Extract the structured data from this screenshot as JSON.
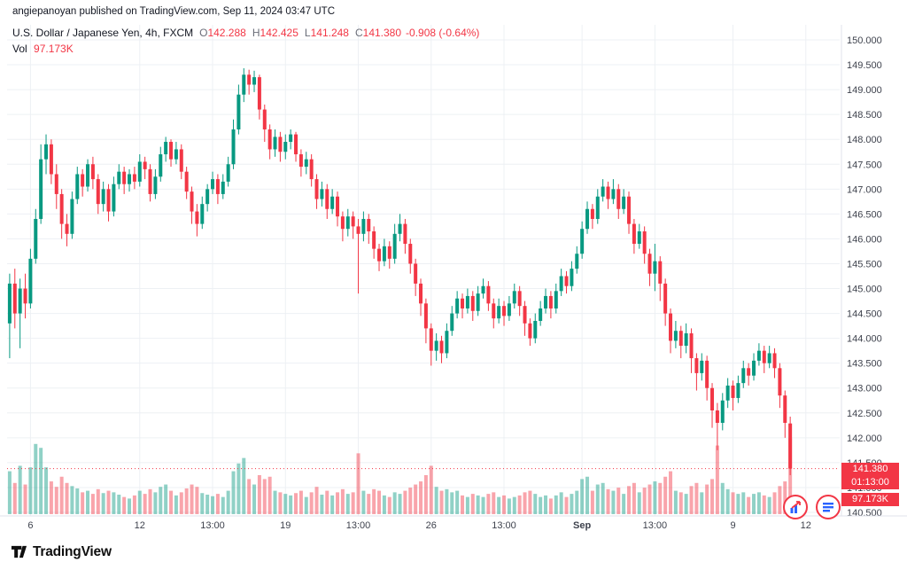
{
  "attribution": "angiepanoyan published on TradingView.com, Sep 11, 2024 03:47 UTC",
  "legend": {
    "symbol_title": "U.S. Dollar / Japanese Yen, 4h, FXCM",
    "ohlc": {
      "o_label": "O",
      "o": "142.288",
      "h_label": "H",
      "h": "142.425",
      "l_label": "L",
      "l": "141.248",
      "c_label": "C",
      "c": "141.380",
      "change": "-0.908 (-0.64%)"
    },
    "vol_label": "Vol",
    "vol_value": "97.173K"
  },
  "price_axis": {
    "labels": [
      "150.000",
      "149.500",
      "149.000",
      "148.500",
      "148.000",
      "147.500",
      "147.000",
      "146.500",
      "146.000",
      "145.500",
      "145.000",
      "144.500",
      "144.000",
      "143.500",
      "143.000",
      "142.500",
      "142.000",
      "141.500",
      "141.000",
      "140.500"
    ]
  },
  "time_axis": {
    "ticks": [
      {
        "label": "6",
        "index": 4
      },
      {
        "label": "12",
        "index": 25
      },
      {
        "label": "13:00",
        "index": 39
      },
      {
        "label": "19",
        "index": 53
      },
      {
        "label": "13:00",
        "index": 67
      },
      {
        "label": "26",
        "index": 81
      },
      {
        "label": "13:00",
        "index": 95
      },
      {
        "label": "Sep",
        "index": 110,
        "bold": true
      },
      {
        "label": "13:00",
        "index": 124
      },
      {
        "label": "9",
        "index": 139
      },
      {
        "label": "12",
        "index": 153
      }
    ]
  },
  "last_price": {
    "price": 141.38,
    "price_label": "141.380",
    "countdown": "01:13:00",
    "volume_label": "97.173K"
  },
  "colors": {
    "up": "#089981",
    "down": "#f23645",
    "vol_up": "rgba(8,153,129,0.45)",
    "vol_down": "rgba(242,54,69,0.45)",
    "grid": "#edf0f4",
    "axis_border": "#e0e3eb",
    "axis_text": "#3e424d",
    "badge_bg": "#f23645",
    "accent_blue": "#2962ff"
  },
  "footer": {
    "brand": "TradingView"
  },
  "chart_data": {
    "type": "candlestick",
    "title": "U.S. Dollar / Japanese Yen, 4h, FXCM",
    "interval": "4h",
    "exchange": "FXCM",
    "xlabel": "",
    "ylabel": "",
    "ylim": [
      140.5,
      150.0
    ],
    "grid": true,
    "columns": [
      "open",
      "high",
      "low",
      "close",
      "volume_k"
    ],
    "last_bar": {
      "open": 142.288,
      "high": 142.425,
      "low": 141.248,
      "close": 141.38,
      "change": -0.908,
      "change_pct": -0.64,
      "volume": "97.173K"
    },
    "candles": [
      [
        144.3,
        145.3,
        143.6,
        145.1,
        55
      ],
      [
        145.1,
        145.4,
        144.2,
        144.5,
        40
      ],
      [
        144.5,
        145.2,
        143.8,
        145.0,
        62
      ],
      [
        145.0,
        145.3,
        144.4,
        144.7,
        38
      ],
      [
        144.7,
        145.8,
        144.6,
        145.6,
        60
      ],
      [
        145.6,
        146.6,
        145.5,
        146.4,
        90
      ],
      [
        146.4,
        147.9,
        146.3,
        147.6,
        85
      ],
      [
        147.6,
        148.1,
        147.3,
        147.9,
        60
      ],
      [
        147.9,
        148.0,
        147.1,
        147.3,
        42
      ],
      [
        147.3,
        147.5,
        146.6,
        146.9,
        35
      ],
      [
        146.9,
        147.0,
        146.0,
        146.3,
        48
      ],
      [
        146.3,
        146.5,
        145.85,
        146.1,
        40
      ],
      [
        146.1,
        146.95,
        146.0,
        146.8,
        36
      ],
      [
        146.8,
        147.45,
        146.7,
        147.3,
        33
      ],
      [
        147.3,
        147.4,
        146.85,
        147.05,
        28
      ],
      [
        147.05,
        147.6,
        146.95,
        147.5,
        30
      ],
      [
        147.5,
        147.65,
        147.0,
        147.2,
        26
      ],
      [
        147.2,
        147.3,
        146.5,
        146.7,
        32
      ],
      [
        146.7,
        147.15,
        146.55,
        147.0,
        27
      ],
      [
        147.0,
        147.1,
        146.35,
        146.55,
        30
      ],
      [
        146.55,
        147.25,
        146.45,
        147.1,
        28
      ],
      [
        147.1,
        147.5,
        147.0,
        147.35,
        25
      ],
      [
        147.35,
        147.45,
        146.9,
        147.1,
        22
      ],
      [
        147.1,
        147.4,
        146.95,
        147.3,
        20
      ],
      [
        147.3,
        147.45,
        147.0,
        147.15,
        24
      ],
      [
        147.15,
        147.7,
        147.05,
        147.55,
        30
      ],
      [
        147.55,
        147.65,
        147.2,
        147.4,
        26
      ],
      [
        147.4,
        147.5,
        146.75,
        146.9,
        32
      ],
      [
        146.9,
        147.4,
        146.8,
        147.25,
        28
      ],
      [
        147.25,
        147.85,
        147.15,
        147.7,
        35
      ],
      [
        147.7,
        148.05,
        147.55,
        147.95,
        38
      ],
      [
        147.95,
        148.0,
        147.45,
        147.6,
        30
      ],
      [
        147.6,
        147.95,
        147.5,
        147.8,
        24
      ],
      [
        147.8,
        147.9,
        147.2,
        147.35,
        28
      ],
      [
        147.35,
        147.45,
        146.8,
        146.95,
        33
      ],
      [
        146.95,
        147.05,
        146.3,
        146.55,
        38
      ],
      [
        146.55,
        146.7,
        146.05,
        146.3,
        35
      ],
      [
        146.3,
        146.85,
        146.2,
        146.7,
        27
      ],
      [
        146.7,
        147.1,
        146.55,
        147.0,
        25
      ],
      [
        147.0,
        147.35,
        146.9,
        147.2,
        23
      ],
      [
        147.2,
        147.3,
        146.7,
        146.9,
        26
      ],
      [
        146.9,
        147.3,
        146.8,
        147.15,
        22
      ],
      [
        147.15,
        147.65,
        147.05,
        147.5,
        30
      ],
      [
        147.5,
        148.4,
        147.4,
        148.2,
        55
      ],
      [
        148.2,
        149.1,
        148.1,
        148.9,
        65
      ],
      [
        148.9,
        149.43,
        148.75,
        149.3,
        72
      ],
      [
        149.3,
        149.4,
        148.9,
        149.1,
        45
      ],
      [
        149.1,
        149.38,
        148.95,
        149.25,
        38
      ],
      [
        149.25,
        149.3,
        148.4,
        148.6,
        50
      ],
      [
        148.6,
        148.7,
        147.95,
        148.2,
        45
      ],
      [
        148.2,
        148.3,
        147.6,
        147.8,
        48
      ],
      [
        147.8,
        148.2,
        147.65,
        148.05,
        30
      ],
      [
        148.05,
        148.15,
        147.55,
        147.75,
        28
      ],
      [
        147.75,
        148.1,
        147.6,
        147.95,
        26
      ],
      [
        147.95,
        148.2,
        147.8,
        148.1,
        24
      ],
      [
        148.1,
        148.15,
        147.55,
        147.7,
        27
      ],
      [
        147.7,
        147.8,
        147.25,
        147.45,
        30
      ],
      [
        147.45,
        147.75,
        147.3,
        147.6,
        22
      ],
      [
        147.6,
        147.7,
        147.05,
        147.2,
        28
      ],
      [
        147.2,
        147.3,
        146.6,
        146.8,
        35
      ],
      [
        146.8,
        147.15,
        146.65,
        147.0,
        25
      ],
      [
        147.0,
        147.1,
        146.4,
        146.6,
        30
      ],
      [
        146.6,
        147.0,
        146.5,
        146.85,
        24
      ],
      [
        146.85,
        146.95,
        146.25,
        146.45,
        28
      ],
      [
        146.45,
        146.55,
        145.95,
        146.2,
        32
      ],
      [
        146.2,
        146.6,
        146.05,
        146.45,
        26
      ],
      [
        146.45,
        146.55,
        146.0,
        146.25,
        28
      ],
      [
        146.25,
        146.4,
        144.9,
        146.1,
        78
      ],
      [
        146.1,
        146.55,
        145.95,
        146.4,
        30
      ],
      [
        146.4,
        146.5,
        145.9,
        146.15,
        26
      ],
      [
        146.15,
        146.25,
        145.6,
        145.8,
        32
      ],
      [
        145.8,
        145.9,
        145.35,
        145.55,
        30
      ],
      [
        145.55,
        146.0,
        145.45,
        145.85,
        24
      ],
      [
        145.85,
        145.95,
        145.4,
        145.6,
        22
      ],
      [
        145.6,
        146.3,
        145.5,
        146.1,
        28
      ],
      [
        146.1,
        146.5,
        145.95,
        146.3,
        26
      ],
      [
        146.3,
        146.4,
        145.7,
        145.9,
        30
      ],
      [
        145.9,
        146.0,
        145.3,
        145.5,
        34
      ],
      [
        145.5,
        145.6,
        144.85,
        145.1,
        38
      ],
      [
        145.1,
        145.2,
        144.45,
        144.7,
        42
      ],
      [
        144.7,
        144.8,
        143.9,
        144.2,
        50
      ],
      [
        144.2,
        144.3,
        143.45,
        143.75,
        62
      ],
      [
        143.75,
        144.1,
        143.55,
        143.95,
        35
      ],
      [
        143.95,
        144.05,
        143.5,
        143.7,
        30
      ],
      [
        143.7,
        144.3,
        143.6,
        144.15,
        32
      ],
      [
        144.15,
        144.65,
        144.05,
        144.5,
        28
      ],
      [
        144.5,
        144.95,
        144.4,
        144.8,
        30
      ],
      [
        144.8,
        144.9,
        144.4,
        144.6,
        24
      ],
      [
        144.6,
        145.0,
        144.5,
        144.85,
        22
      ],
      [
        144.85,
        144.95,
        144.35,
        144.55,
        26
      ],
      [
        144.55,
        145.05,
        144.45,
        144.9,
        24
      ],
      [
        144.9,
        145.2,
        144.8,
        145.05,
        22
      ],
      [
        145.05,
        145.15,
        144.55,
        144.7,
        26
      ],
      [
        144.7,
        144.8,
        144.2,
        144.4,
        28
      ],
      [
        144.4,
        144.8,
        144.3,
        144.65,
        22
      ],
      [
        144.65,
        144.75,
        144.25,
        144.45,
        24
      ],
      [
        144.45,
        144.85,
        144.35,
        144.7,
        20
      ],
      [
        144.7,
        145.1,
        144.6,
        144.95,
        22
      ],
      [
        144.95,
        145.05,
        144.45,
        144.65,
        24
      ],
      [
        144.65,
        144.75,
        144.05,
        144.3,
        28
      ],
      [
        144.3,
        144.4,
        143.85,
        144.0,
        30
      ],
      [
        144.0,
        144.5,
        143.9,
        144.35,
        26
      ],
      [
        144.35,
        144.75,
        144.25,
        144.6,
        22
      ],
      [
        144.6,
        145.0,
        144.5,
        144.85,
        24
      ],
      [
        144.85,
        144.95,
        144.4,
        144.6,
        20
      ],
      [
        144.6,
        145.1,
        144.5,
        144.95,
        24
      ],
      [
        144.95,
        145.4,
        144.85,
        145.25,
        28
      ],
      [
        145.25,
        145.35,
        144.9,
        145.05,
        22
      ],
      [
        145.05,
        145.55,
        144.95,
        145.4,
        26
      ],
      [
        145.4,
        145.85,
        145.3,
        145.7,
        30
      ],
      [
        145.7,
        146.35,
        145.6,
        146.2,
        45
      ],
      [
        146.2,
        146.75,
        146.1,
        146.6,
        48
      ],
      [
        146.6,
        146.7,
        146.2,
        146.4,
        30
      ],
      [
        146.4,
        147.0,
        146.3,
        146.85,
        38
      ],
      [
        146.85,
        147.2,
        146.75,
        147.05,
        40
      ],
      [
        147.05,
        147.15,
        146.6,
        146.8,
        32
      ],
      [
        146.8,
        147.2,
        146.7,
        147.0,
        30
      ],
      [
        147.0,
        147.1,
        146.4,
        146.6,
        34
      ],
      [
        146.6,
        147.0,
        146.5,
        146.85,
        26
      ],
      [
        146.85,
        146.95,
        146.1,
        146.3,
        36
      ],
      [
        146.3,
        146.4,
        145.7,
        145.9,
        40
      ],
      [
        145.9,
        146.3,
        145.8,
        146.15,
        28
      ],
      [
        146.15,
        146.25,
        145.5,
        145.7,
        34
      ],
      [
        145.7,
        145.8,
        145.05,
        145.3,
        38
      ],
      [
        145.3,
        145.9,
        144.95,
        145.55,
        42
      ],
      [
        145.55,
        145.65,
        144.75,
        145.1,
        40
      ],
      [
        145.1,
        145.2,
        144.25,
        144.5,
        48
      ],
      [
        144.5,
        144.6,
        143.7,
        143.95,
        55
      ],
      [
        143.95,
        144.35,
        143.8,
        144.15,
        30
      ],
      [
        144.15,
        144.25,
        143.6,
        143.85,
        28
      ],
      [
        143.85,
        144.3,
        143.7,
        144.1,
        26
      ],
      [
        144.1,
        144.2,
        143.3,
        143.6,
        36
      ],
      [
        143.6,
        143.7,
        142.95,
        143.3,
        40
      ],
      [
        143.3,
        143.7,
        143.15,
        143.55,
        28
      ],
      [
        143.55,
        143.65,
        142.75,
        143.0,
        38
      ],
      [
        143.0,
        143.1,
        142.2,
        142.55,
        45
      ],
      [
        142.55,
        142.7,
        141.75,
        142.3,
        88
      ],
      [
        142.3,
        142.9,
        142.15,
        142.75,
        40
      ],
      [
        142.75,
        143.2,
        142.6,
        143.05,
        32
      ],
      [
        143.05,
        143.15,
        142.55,
        142.8,
        28
      ],
      [
        142.8,
        143.25,
        142.7,
        143.1,
        26
      ],
      [
        143.1,
        143.55,
        143.0,
        143.4,
        28
      ],
      [
        143.4,
        143.5,
        143.05,
        143.25,
        22
      ],
      [
        143.25,
        143.7,
        143.15,
        143.55,
        26
      ],
      [
        143.55,
        143.9,
        143.45,
        143.75,
        28
      ],
      [
        143.75,
        143.85,
        143.3,
        143.5,
        24
      ],
      [
        143.5,
        143.85,
        143.4,
        143.7,
        22
      ],
      [
        143.7,
        143.8,
        143.2,
        143.4,
        28
      ],
      [
        143.4,
        143.5,
        142.6,
        142.85,
        36
      ],
      [
        142.85,
        142.95,
        142.0,
        142.3,
        42
      ],
      [
        142.288,
        142.425,
        141.248,
        141.38,
        97.173
      ]
    ]
  }
}
